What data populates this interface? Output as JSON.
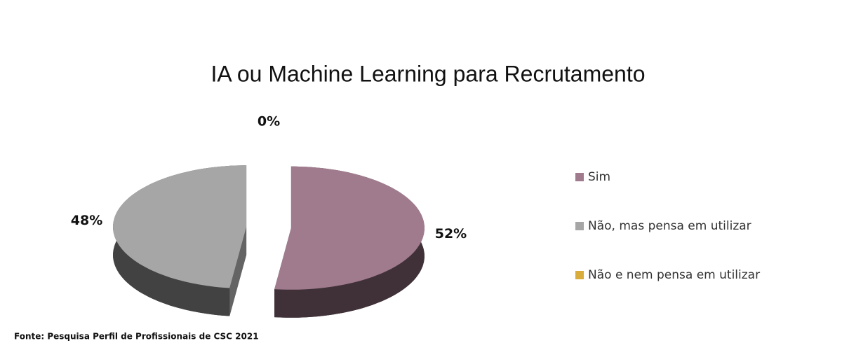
{
  "chart_data": {
    "type": "pie3d",
    "title": "IA ou Machine Learning para Recrutamento",
    "categories": [
      "Sim",
      "Não, mas pensa em utilizar",
      "Não e nem pensa em utilizar"
    ],
    "values": [
      52,
      48,
      0
    ],
    "value_labels": [
      "52%",
      "48%",
      "0%"
    ],
    "colors": [
      "#a07b8d",
      "#a6a6a6",
      "#d8ad3c"
    ],
    "source": "Fonte: Pesquisa Perfil de Profissionais de CSC 2021",
    "legend": "right"
  }
}
